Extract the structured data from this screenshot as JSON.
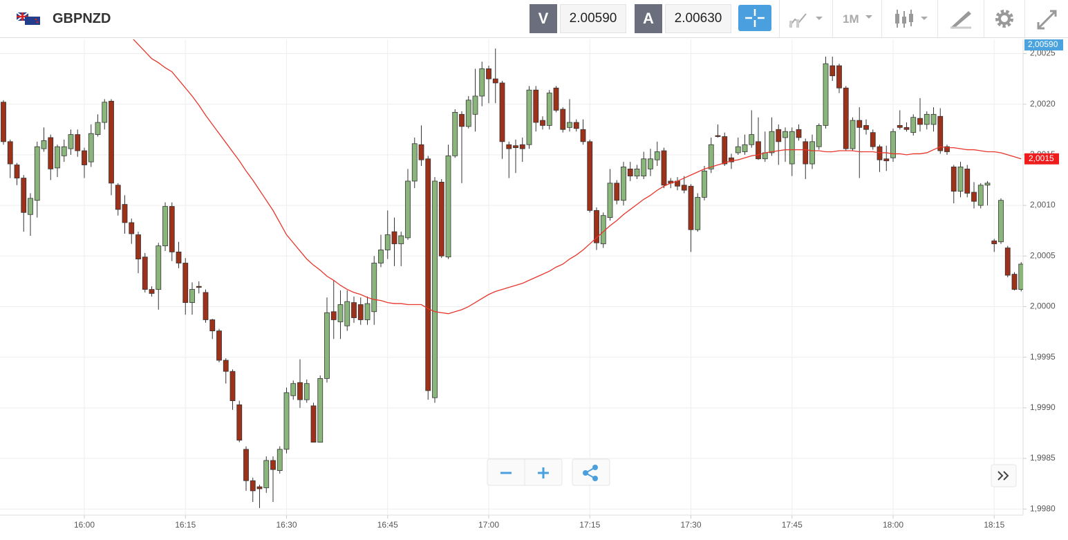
{
  "header": {
    "symbol": "GBPNZD",
    "sell_label": "V",
    "sell_price": "2.00590",
    "buy_label": "A",
    "buy_price": "2.00630",
    "timeframe": "1M"
  },
  "chart_data": {
    "type": "candlestick",
    "categories": [
      null,
      null,
      null,
      null,
      null,
      null,
      null,
      null,
      null,
      null,
      null,
      null,
      "16:00",
      null,
      null,
      null,
      null,
      null,
      null,
      null,
      null,
      null,
      null,
      null,
      null,
      null,
      null,
      "16:15",
      null,
      null,
      null,
      null,
      null,
      null,
      null,
      null,
      null,
      null,
      null,
      null,
      null,
      null,
      "16:30",
      null,
      null,
      null,
      null,
      null,
      null,
      null,
      null,
      null,
      null,
      null,
      null,
      null,
      null,
      "16:45",
      null,
      null,
      null,
      null,
      null,
      null,
      null,
      null,
      null,
      null,
      null,
      null,
      null,
      null,
      "17:00",
      null,
      null,
      null,
      null,
      null,
      null,
      null,
      null,
      null,
      null,
      null,
      null,
      null,
      null,
      "17:15",
      null,
      null,
      null,
      null,
      null,
      null,
      null,
      null,
      null,
      null,
      null,
      null,
      null,
      null,
      "17:30",
      null,
      null,
      null,
      null,
      null,
      null,
      null,
      null,
      null,
      null,
      null,
      null,
      null,
      null,
      "17:45",
      null,
      null,
      null,
      null,
      null,
      null,
      null,
      null,
      null,
      null,
      null,
      null,
      null,
      null,
      "18:00",
      null,
      null,
      null,
      null,
      null,
      null,
      null,
      null,
      null,
      null,
      null,
      null,
      null,
      null,
      "18:15",
      null,
      null,
      null,
      null
    ],
    "open": [
      2.00202,
      2.00163,
      2.0014,
      2.00127,
      2.00091,
      2.00105,
      2.00156,
      2.00167,
      2.00137,
      2.00149,
      2.00156,
      2.0017,
      2.00154,
      2.00143,
      2.0017,
      2.00182,
      2.00203,
      2.0012,
      2.00101,
      2.00083,
      2.00071,
      2.00049,
      2.00017,
      2.00017,
      2.0006,
      2.00099,
      2.00054,
      2.00043,
      2.00004,
      2.0002,
      2.00014,
      1.99987,
      1.99976,
      1.99947,
      1.99936,
      1.99903,
      1.99859,
      1.99828,
      1.99822,
      1.99821,
      1.99848,
      1.99838,
      1.99859,
      1.99912,
      1.99925,
      1.99908,
      1.99902,
      1.99866,
      1.99929,
      1.99995,
      1.99985,
      1.99981,
      2.00004,
      2.00002,
      1.99987,
      1.99995,
      2.00043,
      2.00056,
      2.00074,
      2.00062,
      2.00068,
      2.00124,
      2.0016,
      2.00146,
      1.9991,
      2.00123,
      2.00049,
      2.00149,
      2.0019,
      2.00178,
      2.0019,
      2.00208,
      2.00235,
      2.00225,
      2.00221,
      2.0016,
      2.00159,
      2.0016,
      2.0016,
      2.00214,
      2.00184,
      2.00179,
      2.00216,
      2.00195,
      2.00177,
      2.00182,
      2.00175,
      2.00163,
      2.00095,
      2.00062,
      2.00088,
      2.00122,
      2.00105,
      2.00136,
      2.00129,
      2.00129,
      2.00136,
      2.00145,
      2.00154,
      2.00124,
      2.00124,
      2.0012,
      2.00119,
      2.00076,
      2.00108,
      2.00136,
      2.00169,
      2.00168,
      2.00147,
      2.00152,
      2.00153,
      2.0016,
      2.00163,
      2.00146,
      2.00152,
      2.00175,
      2.00167,
      2.00141,
      2.00175,
      2.00163,
      2.00141,
      2.00158,
      2.00179,
      2.00238,
      2.00238,
      2.00216,
      2.00156,
      2.00184,
      2.00179,
      2.00172,
      2.00158,
      2.00146,
      2.00147,
      2.00179,
      2.00177,
      2.00172,
      2.00186,
      2.0018,
      2.0018,
      2.00188,
      2.00158,
      2.00138,
      2.00114,
      2.00136,
      2.00113,
      2.001,
      2.0012,
      2.00065,
      2.00064,
      2.00058,
      2.00032,
      2.00017
    ],
    "high": [
      2.00204,
      2.00165,
      2.00142,
      2.0013,
      2.00112,
      2.00163,
      2.00177,
      2.0017,
      2.0016,
      2.00165,
      2.00175,
      2.00175,
      2.00157,
      2.0018,
      2.0019,
      2.00205,
      2.00205,
      2.00122,
      2.0011,
      2.00087,
      2.00074,
      2.00053,
      2.0002,
      2.00063,
      2.00103,
      2.00103,
      2.00064,
      2.00048,
      2.00024,
      2.00025,
      2.00017,
      1.99988,
      1.99978,
      1.99949,
      1.99938,
      1.99907,
      1.99862,
      1.99831,
      1.99824,
      1.99852,
      1.99852,
      1.99862,
      1.9992,
      1.99927,
      1.99948,
      1.99928,
      1.99905,
      1.99932,
      2.00009,
      2.00026,
      2.00016,
      2.00016,
      2.0001,
      2.00009,
      2.0001,
      2.0005,
      2.00071,
      2.00095,
      2.00088,
      2.00074,
      2.00136,
      2.00167,
      2.00179,
      2.00149,
      2.00128,
      2.00126,
      2.0016,
      2.00195,
      2.00193,
      2.00208,
      2.00235,
      2.00242,
      2.00238,
      2.00255,
      2.00223,
      2.00163,
      2.00165,
      2.00167,
      2.00218,
      2.00218,
      2.00188,
      2.00214,
      2.00218,
      2.00197,
      2.00205,
      2.00185,
      2.00185,
      2.00165,
      2.00098,
      2.00093,
      2.00136,
      2.00125,
      2.00143,
      2.00143,
      2.0014,
      2.00153,
      2.00156,
      2.00163,
      2.00157,
      2.00127,
      2.00128,
      2.00129,
      2.00121,
      2.00112,
      2.00139,
      2.00167,
      2.0018,
      2.00172,
      2.00151,
      2.00167,
      2.0017,
      2.00194,
      2.00187,
      2.00173,
      2.00187,
      2.0018,
      2.00177,
      2.00177,
      2.0018,
      2.00166,
      2.0017,
      2.00181,
      2.00247,
      2.00247,
      2.0024,
      2.00218,
      2.00187,
      2.00197,
      2.00185,
      2.00175,
      2.0016,
      2.00159,
      2.00176,
      2.00194,
      2.00182,
      2.0019,
      2.00206,
      2.00193,
      2.00197,
      2.00196,
      2.0016,
      2.0014,
      2.00143,
      2.0014,
      2.00123,
      2.00122,
      2.00124,
      2.00067,
      2.00107,
      2.0006,
      2.00034,
      2.00044
    ],
    "low": [
      2.0016,
      2.00127,
      2.0012,
      2.00074,
      2.0007,
      2.00088,
      2.00153,
      2.00125,
      2.00128,
      2.00143,
      2.0015,
      2.00148,
      2.00127,
      2.00138,
      2.00168,
      2.00175,
      2.0011,
      2.0009,
      2.00072,
      2.00062,
      2.00033,
      2.00014,
      2.0001,
      1.99997,
      2.00055,
      2.00045,
      2.00038,
      1.99992,
      1.99992,
      2.00013,
      1.99984,
      1.99968,
      1.99945,
      1.99924,
      1.99898,
      1.99866,
      1.99818,
      1.99807,
      1.99801,
      1.99816,
      1.99807,
      1.99835,
      1.99855,
      1.99908,
      1.999,
      1.99905,
      1.99866,
      1.99866,
      1.99925,
      1.99968,
      1.99968,
      1.99976,
      1.99984,
      1.99982,
      1.99982,
      1.99982,
      2.00039,
      2.00047,
      2.0004,
      2.0004,
      2.00066,
      2.00117,
      2.00139,
      1.99908,
      1.99905,
      2.00048,
      2.00047,
      2.00147,
      2.00122,
      2.00176,
      2.00173,
      2.00198,
      2.00201,
      2.00201,
      2.00146,
      2.00127,
      2.00132,
      2.00143,
      2.00156,
      2.00173,
      2.00175,
      2.00175,
      2.00192,
      2.00172,
      2.00173,
      2.00173,
      2.0016,
      2.00093,
      2.00056,
      2.00058,
      2.00085,
      2.00101,
      2.001,
      2.00124,
      2.00126,
      2.00126,
      2.00129,
      2.00139,
      2.00117,
      2.00117,
      2.00115,
      2.00112,
      2.00054,
      2.00074,
      2.00105,
      2.00132,
      2.00167,
      2.00139,
      2.00136,
      2.0015,
      2.0015,
      2.00157,
      2.00145,
      2.00143,
      2.00149,
      2.0014,
      2.00143,
      2.00129,
      2.00164,
      2.00126,
      2.00136,
      2.00155,
      2.00176,
      2.00223,
      2.00211,
      2.00154,
      2.00154,
      2.00127,
      2.0017,
      2.00155,
      2.00133,
      2.00134,
      2.00143,
      2.00175,
      2.00173,
      2.00169,
      2.00173,
      2.00175,
      2.00173,
      2.00151,
      2.0015,
      2.00102,
      2.00108,
      2.00108,
      2.00097,
      2.00097,
      2.001,
      2.00054,
      2.00062,
      2.00029,
      2.00016,
      2.00015
    ],
    "close": [
      2.00163,
      2.00141,
      2.00127,
      2.00093,
      2.00107,
      2.00158,
      2.00164,
      2.00136,
      2.00158,
      2.00158,
      2.0017,
      2.00154,
      2.0014,
      2.00171,
      2.00182,
      2.00202,
      2.00122,
      2.00096,
      2.00083,
      2.00072,
      2.00047,
      2.00017,
      2.00013,
      2.0006,
      2.00099,
      2.00054,
      2.00043,
      2.00004,
      2.00017,
      2.00019,
      1.99987,
      1.99976,
      1.99947,
      1.99936,
      1.99907,
      1.99868,
      1.99828,
      1.99818,
      1.9982,
      1.99848,
      1.99839,
      1.99859,
      1.99915,
      1.99924,
      1.99908,
      1.99924,
      1.99866,
      1.99929,
      1.99994,
      1.99987,
      2.00002,
      2.00005,
      1.99989,
      1.99987,
      2.00003,
      2.00043,
      2.00056,
      2.00071,
      2.00062,
      2.0007,
      2.00124,
      2.00161,
      2.00145,
      1.99917,
      2.00124,
      2.0005,
      2.00149,
      2.00192,
      2.00178,
      2.00204,
      2.00208,
      2.00235,
      2.00225,
      2.00221,
      2.00163,
      2.00156,
      2.00157,
      2.00156,
      2.00214,
      2.00182,
      2.00179,
      2.00211,
      2.00194,
      2.00175,
      2.00182,
      2.00176,
      2.00163,
      2.00095,
      2.00063,
      2.0009,
      2.00122,
      2.00105,
      2.00138,
      2.00129,
      2.00136,
      2.00146,
      2.00146,
      2.00153,
      2.0012,
      2.00122,
      2.00119,
      2.00115,
      2.00076,
      2.00108,
      2.00134,
      2.0016,
      2.00168,
      2.00141,
      2.00143,
      2.00158,
      2.0016,
      2.0017,
      2.00146,
      2.00152,
      2.00173,
      2.00163,
      2.00173,
      2.00173,
      2.00167,
      2.00141,
      2.00163,
      2.00179,
      2.0024,
      2.00228,
      2.00216,
      2.00156,
      2.00184,
      2.00177,
      2.00175,
      2.00158,
      2.00145,
      2.00144,
      2.00173,
      2.00177,
      2.00175,
      2.00187,
      2.0018,
      2.0019,
      2.0019,
      2.00154,
      2.00153,
      2.00114,
      2.00138,
      2.00112,
      2.00104,
      2.0012,
      2.00122,
      2.00062,
      2.00105,
      2.00031,
      2.00017,
      2.00042
    ],
    "up_color": "#8bb67b",
    "down_color": "#9e3119",
    "overlay": {
      "color": "#e8342a",
      "values": [
        null,
        null,
        null,
        null,
        null,
        null,
        null,
        null,
        null,
        null,
        null,
        null,
        null,
        null,
        null,
        null,
        null,
        null,
        null,
        2.00266,
        2.00259,
        2.00252,
        2.00245,
        2.00241,
        2.00236,
        2.00232,
        2.00224,
        2.00216,
        2.00208,
        2.00199,
        2.00189,
        2.0018,
        2.00171,
        2.00162,
        2.00153,
        2.00144,
        2.00134,
        2.00125,
        2.00115,
        2.00105,
        2.00095,
        2.00083,
        2.00071,
        2.00063,
        2.00055,
        2.00047,
        2.00041,
        2.00036,
        2.0003,
        2.00026,
        2.00021,
        2.00017,
        2.00014,
        2.00012,
        2.00009,
        2.00007,
        2.00006,
        2.00004,
        2.00003,
        2.00003,
        2.00002,
        2.00002,
        2.00002,
        1.99998,
        1.99995,
        1.99994,
        1.99993,
        1.99995,
        1.99997,
        2.0,
        2.00004,
        2.00008,
        2.00012,
        2.00015,
        2.00017,
        2.00019,
        2.00021,
        2.00023,
        2.00026,
        2.00029,
        2.00032,
        2.00035,
        2.00039,
        2.00042,
        2.00047,
        2.00051,
        2.00056,
        2.00062,
        2.00068,
        2.00074,
        2.0008,
        2.00085,
        2.00091,
        2.00096,
        2.00101,
        2.00106,
        2.0011,
        2.00115,
        2.00119,
        2.00122,
        2.00124,
        2.00127,
        2.0013,
        2.00133,
        2.00136,
        2.00138,
        2.0014,
        2.00142,
        2.00144,
        2.00145,
        2.00147,
        2.00149,
        2.0015,
        2.00152,
        2.00153,
        2.00154,
        2.00155,
        2.00155,
        2.00155,
        2.00155,
        2.00154,
        2.00154,
        2.00153,
        2.00153,
        2.00154,
        2.00154,
        2.00154,
        2.00153,
        2.00153,
        2.00153,
        2.00152,
        2.00152,
        2.00151,
        2.00151,
        2.0015,
        2.00151,
        2.00151,
        2.00152,
        2.00155,
        2.00158,
        2.00157,
        2.00157,
        2.00156,
        2.00155,
        2.00155,
        2.00154,
        2.00153,
        2.00153,
        2.00152,
        2.0015,
        2.00148,
        2.00146
      ]
    },
    "price_tag": "2,00590",
    "overlay_tag": "2,0015",
    "ylim": [
      1.99794,
      2.00264
    ],
    "yticks": [
      {
        "value": 1.998,
        "label": "1,9980"
      },
      {
        "value": 1.9985,
        "label": "1,9985"
      },
      {
        "value": 1.999,
        "label": "1,9990"
      },
      {
        "value": 1.9995,
        "label": "1,9995"
      },
      {
        "value": 2,
        "label": "2,0000"
      },
      {
        "value": 2.0005,
        "label": "2,0005"
      },
      {
        "value": 2.001,
        "label": "2,0010"
      },
      {
        "value": 2.0015,
        "label": "2,0015"
      },
      {
        "value": 2.002,
        "label": "2,0020"
      },
      {
        "value": 2.0025,
        "label": "2,0025"
      }
    ],
    "grid": true
  }
}
